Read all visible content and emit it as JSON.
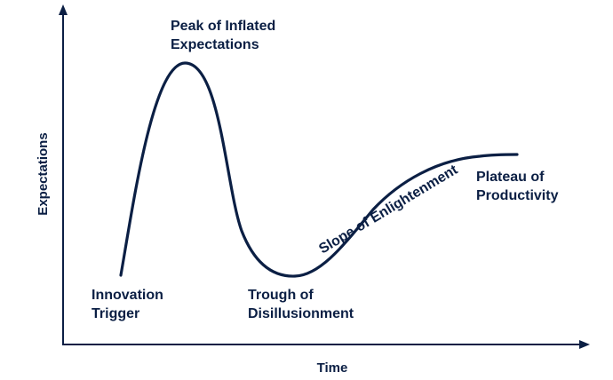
{
  "axes": {
    "y_label": "Expectations",
    "x_label": "Time"
  },
  "phases": {
    "innovation_trigger": [
      "Innovation",
      "Trigger"
    ],
    "peak": [
      "Peak of Inflated",
      "Expectations"
    ],
    "trough": [
      "Trough of",
      "Disillusionment"
    ],
    "slope": "Slope of Enlightenment",
    "plateau": [
      "Plateau of",
      "Productivity"
    ]
  },
  "colors": {
    "ink": "#0b1f44",
    "background": "#ffffff"
  }
}
